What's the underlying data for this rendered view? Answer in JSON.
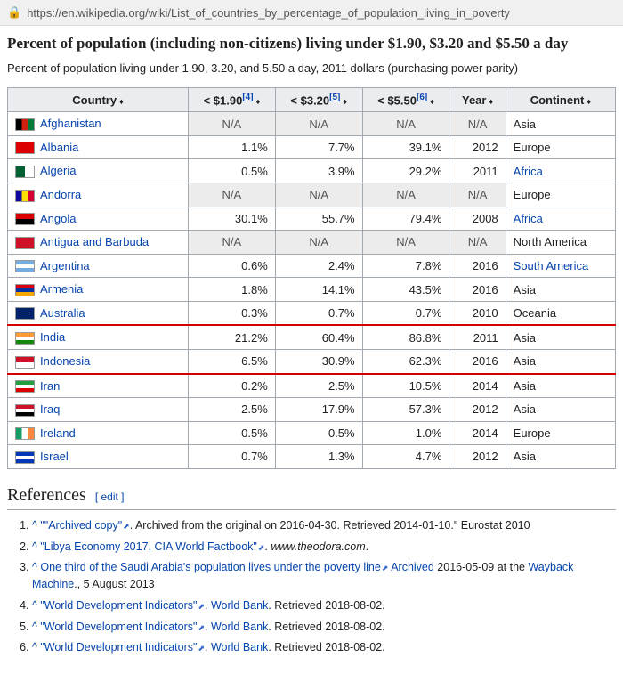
{
  "url": "https://en.wikipedia.org/wiki/List_of_countries_by_percentage_of_population_living_in_poverty",
  "heading": "Percent of population (including non-citizens) living under $1.90, $3.20 and $5.50 a day",
  "subtitle": "Percent of population living under 1.90, 3.20, and 5.50 a day, 2011 dollars (purchasing power parity)",
  "columns": {
    "country": "Country",
    "c190": "< $1.90",
    "c320": "< $3.20",
    "c550": "< $5.50",
    "year": "Year",
    "continent": "Continent",
    "ref190": "[4]",
    "ref320": "[5]",
    "ref550": "[6]"
  },
  "rows": [
    {
      "country": "Afghanistan",
      "flag": {
        "bars": [
          "#000",
          "#d32011",
          "#007a36"
        ],
        "dir": "v"
      },
      "c190": "N/A",
      "c320": "N/A",
      "c550": "N/A",
      "year": "N/A",
      "continent": "Asia",
      "na": true,
      "clink": false
    },
    {
      "country": "Albania",
      "flag": {
        "bg": "#d00"
      },
      "c190": "1.1%",
      "c320": "7.7%",
      "c550": "39.1%",
      "year": "2012",
      "continent": "Europe",
      "clink": false
    },
    {
      "country": "Algeria",
      "flag": {
        "bars": [
          "#006233",
          "#fff"
        ],
        "dir": "v"
      },
      "c190": "0.5%",
      "c320": "3.9%",
      "c550": "29.2%",
      "year": "2011",
      "continent": "Africa",
      "clink": true
    },
    {
      "country": "Andorra",
      "flag": {
        "bars": [
          "#10069f",
          "#fedd00",
          "#d50032"
        ],
        "dir": "v"
      },
      "c190": "N/A",
      "c320": "N/A",
      "c550": "N/A",
      "year": "N/A",
      "continent": "Europe",
      "na": true,
      "clink": false
    },
    {
      "country": "Angola",
      "flag": {
        "bars": [
          "#d00",
          "#000"
        ],
        "dir": "h"
      },
      "c190": "30.1%",
      "c320": "55.7%",
      "c550": "79.4%",
      "year": "2008",
      "continent": "Africa",
      "clink": true
    },
    {
      "country": "Antigua and Barbuda",
      "flag": {
        "bg": "#ce1126"
      },
      "c190": "N/A",
      "c320": "N/A",
      "c550": "N/A",
      "year": "N/A",
      "continent": "North America",
      "na": true,
      "clink": false
    },
    {
      "country": "Argentina",
      "flag": {
        "bars": [
          "#74acdf",
          "#fff",
          "#74acdf"
        ],
        "dir": "h"
      },
      "c190": "0.6%",
      "c320": "2.4%",
      "c550": "7.8%",
      "year": "2016",
      "continent": "South America",
      "clink": true
    },
    {
      "country": "Armenia",
      "flag": {
        "bars": [
          "#d90012",
          "#0033a0",
          "#f2a800"
        ],
        "dir": "h"
      },
      "c190": "1.8%",
      "c320": "14.1%",
      "c550": "43.5%",
      "year": "2016",
      "continent": "Asia",
      "clink": false
    },
    {
      "country": "Australia",
      "flag": {
        "bg": "#012169"
      },
      "c190": "0.3%",
      "c320": "0.7%",
      "c550": "0.7%",
      "year": "2010",
      "continent": "Oceania",
      "clink": false
    },
    {
      "country": "India",
      "flag": {
        "bars": [
          "#ff9933",
          "#fff",
          "#138808"
        ],
        "dir": "h"
      },
      "c190": "21.2%",
      "c320": "60.4%",
      "c550": "86.8%",
      "year": "2011",
      "continent": "Asia",
      "clink": false,
      "hl": "top"
    },
    {
      "country": "Indonesia",
      "flag": {
        "bars": [
          "#ce1126",
          "#fff"
        ],
        "dir": "h"
      },
      "c190": "6.5%",
      "c320": "30.9%",
      "c550": "62.3%",
      "year": "2016",
      "continent": "Asia",
      "clink": false,
      "hl": "bot"
    },
    {
      "country": "Iran",
      "flag": {
        "bars": [
          "#239f40",
          "#fff",
          "#da0000"
        ],
        "dir": "h"
      },
      "c190": "0.2%",
      "c320": "2.5%",
      "c550": "10.5%",
      "year": "2014",
      "continent": "Asia",
      "clink": false
    },
    {
      "country": "Iraq",
      "flag": {
        "bars": [
          "#ce1126",
          "#fff",
          "#000"
        ],
        "dir": "h"
      },
      "c190": "2.5%",
      "c320": "17.9%",
      "c550": "57.3%",
      "year": "2012",
      "continent": "Asia",
      "clink": false
    },
    {
      "country": "Ireland",
      "flag": {
        "bars": [
          "#169b62",
          "#fff",
          "#ff883e"
        ],
        "dir": "v"
      },
      "c190": "0.5%",
      "c320": "0.5%",
      "c550": "1.0%",
      "year": "2014",
      "continent": "Europe",
      "clink": false
    },
    {
      "country": "Israel",
      "flag": {
        "bars": [
          "#0038b8",
          "#fff",
          "#0038b8"
        ],
        "dir": "h"
      },
      "c190": "0.7%",
      "c320": "1.3%",
      "c550": "4.7%",
      "year": "2012",
      "continent": "Asia",
      "clink": false
    }
  ],
  "refs_heading": "References",
  "edit_label": "[ edit ]",
  "references": [
    {
      "pre": "^ \"",
      "link": "\"Archived copy\"",
      "post": ". Archived",
      "post2": " from the original on 2016-04-30. Retrieved 2014-01-10.\" Eurostat 2010"
    },
    {
      "pre": "^ ",
      "link": "\"Libya Economy 2017, CIA World Factbook\"",
      "post": ". ",
      "ital": "www.theodora.com",
      "post2": "."
    },
    {
      "pre": "^ ",
      "link": "One third of the Saudi Arabia's population lives under the poverty line",
      "post": " ",
      "link2": "Archived",
      "post2": " 2016-05-09 at the ",
      "link3": "Wayback Machine",
      "post3": "., 5 August 2013"
    },
    {
      "pre": "^ ",
      "link": "\"World Development Indicators\"",
      "post": ". ",
      "link2": "World Bank",
      "post2": ". Retrieved 2018-08-02."
    },
    {
      "pre": "^ ",
      "link": "\"World Development Indicators\"",
      "post": ". ",
      "link2": "World Bank",
      "post2": ". Retrieved 2018-08-02."
    },
    {
      "pre": "^ ",
      "link": "\"World Development Indicators\"",
      "post": ". ",
      "link2": "World Bank",
      "post2": ". Retrieved 2018-08-02."
    }
  ]
}
